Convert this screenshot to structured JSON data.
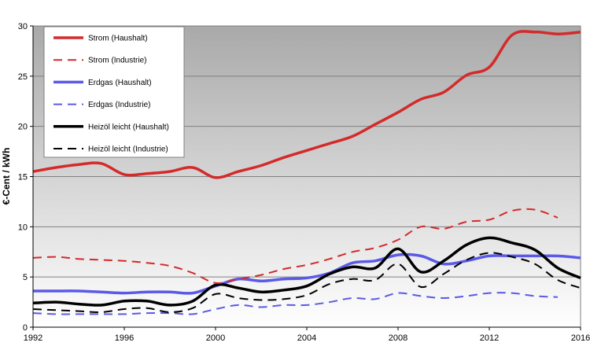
{
  "chart_data": {
    "type": "line",
    "title": "",
    "xlabel": "",
    "ylabel": "€-Cent / kWh",
    "xlim": [
      1992,
      2016
    ],
    "ylim": [
      0,
      30
    ],
    "x_ticks": [
      "1992",
      "1996",
      "2000",
      "2004",
      "2008",
      "2012",
      "2016"
    ],
    "y_ticks": [
      "0",
      "5",
      "10",
      "15",
      "20",
      "25",
      "30"
    ],
    "grid": "horizontal",
    "legend_position": "top-left",
    "series": [
      {
        "name": "Strom (Haushalt)",
        "color": "#d42a2a",
        "style": "solid",
        "x": [
          1992,
          1993,
          1994,
          1995,
          1996,
          1997,
          1998,
          1999,
          2000,
          2001,
          2002,
          2003,
          2004,
          2005,
          2006,
          2007,
          2008,
          2009,
          2010,
          2011,
          2012,
          2013,
          2014,
          2015,
          2016
        ],
        "y": [
          15.5,
          15.9,
          16.2,
          16.3,
          15.2,
          15.3,
          15.5,
          15.9,
          14.9,
          15.5,
          16.1,
          16.9,
          17.6,
          18.3,
          19.0,
          20.2,
          21.4,
          22.7,
          23.4,
          25.1,
          25.9,
          29.1,
          29.4,
          29.2,
          29.4
        ]
      },
      {
        "name": "Strom (Industrie)",
        "color": "#d42a2a",
        "style": "dashed",
        "x": [
          1992,
          1993,
          1994,
          1995,
          1996,
          1997,
          1998,
          1999,
          2000,
          2001,
          2002,
          2003,
          2004,
          2005,
          2006,
          2007,
          2008,
          2009,
          2010,
          2011,
          2012,
          2013,
          2014,
          2015
        ],
        "y": [
          6.9,
          7.0,
          6.8,
          6.7,
          6.6,
          6.4,
          6.1,
          5.4,
          4.4,
          4.8,
          5.2,
          5.8,
          6.2,
          6.8,
          7.5,
          7.9,
          8.7,
          10.0,
          9.8,
          10.5,
          10.7,
          11.6,
          11.7,
          10.9
        ]
      },
      {
        "name": "Erdgas (Haushalt)",
        "color": "#5a5ae6",
        "style": "solid",
        "x": [
          1992,
          1993,
          1994,
          1995,
          1996,
          1997,
          1998,
          1999,
          2000,
          2001,
          2002,
          2003,
          2004,
          2005,
          2006,
          2007,
          2008,
          2009,
          2010,
          2011,
          2012,
          2013,
          2014,
          2015,
          2016
        ],
        "y": [
          3.6,
          3.6,
          3.6,
          3.5,
          3.4,
          3.5,
          3.5,
          3.4,
          4.1,
          4.8,
          4.6,
          4.8,
          4.9,
          5.4,
          6.4,
          6.6,
          7.2,
          7.1,
          6.3,
          6.6,
          7.1,
          7.1,
          7.1,
          7.1,
          6.9
        ]
      },
      {
        "name": "Erdgas (Industrie)",
        "color": "#5a5ae6",
        "style": "dashed",
        "x": [
          1992,
          1993,
          1994,
          1995,
          1996,
          1997,
          1998,
          1999,
          2000,
          2001,
          2002,
          2003,
          2004,
          2005,
          2006,
          2007,
          2008,
          2009,
          2010,
          2011,
          2012,
          2013,
          2014,
          2015
        ],
        "y": [
          1.4,
          1.3,
          1.3,
          1.3,
          1.3,
          1.4,
          1.4,
          1.3,
          1.8,
          2.2,
          2.0,
          2.2,
          2.2,
          2.5,
          2.9,
          2.8,
          3.4,
          3.1,
          2.9,
          3.1,
          3.4,
          3.4,
          3.1,
          3.0
        ]
      },
      {
        "name": "Heizöl leicht (Haushalt)",
        "color": "#000000",
        "style": "solid",
        "x": [
          1992,
          1993,
          1994,
          1995,
          1996,
          1997,
          1998,
          1999,
          2000,
          2001,
          2002,
          2003,
          2004,
          2005,
          2006,
          2007,
          2008,
          2009,
          2010,
          2011,
          2012,
          2013,
          2014,
          2015,
          2016
        ],
        "y": [
          2.4,
          2.5,
          2.3,
          2.2,
          2.6,
          2.6,
          2.2,
          2.6,
          4.2,
          3.9,
          3.5,
          3.7,
          4.1,
          5.3,
          6.0,
          5.9,
          7.8,
          5.5,
          6.6,
          8.2,
          8.9,
          8.4,
          7.7,
          5.9,
          4.9
        ]
      },
      {
        "name": "Heizöl leicht (Industrie)",
        "color": "#000000",
        "style": "dashed",
        "x": [
          1992,
          1993,
          1994,
          1995,
          1996,
          1997,
          1998,
          1999,
          2000,
          2001,
          2002,
          2003,
          2004,
          2005,
          2006,
          2007,
          2008,
          2009,
          2010,
          2011,
          2012,
          2013,
          2014,
          2015,
          2016
        ],
        "y": [
          1.8,
          1.7,
          1.6,
          1.5,
          1.8,
          1.9,
          1.5,
          1.9,
          3.3,
          2.9,
          2.7,
          2.8,
          3.2,
          4.3,
          4.8,
          4.7,
          6.3,
          4.0,
          5.3,
          6.7,
          7.4,
          7.0,
          6.3,
          4.7,
          3.9
        ]
      }
    ]
  }
}
